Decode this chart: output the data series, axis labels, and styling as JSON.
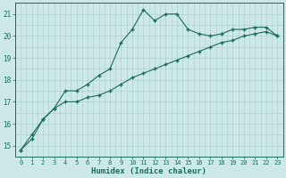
{
  "xlabel": "Humidex (Indice chaleur)",
  "ylabel": "",
  "background_color": "#cde8e8",
  "grid_color": "#b0d0d0",
  "line_color": "#1a6b5a",
  "xlim": [
    -0.5,
    23.5
  ],
  "ylim": [
    14.5,
    21.5
  ],
  "yticks": [
    15,
    16,
    17,
    18,
    19,
    20,
    21
  ],
  "xticks": [
    0,
    1,
    2,
    3,
    4,
    5,
    6,
    7,
    8,
    9,
    10,
    11,
    12,
    13,
    14,
    15,
    16,
    17,
    18,
    19,
    20,
    21,
    22,
    23
  ],
  "curve1_x": [
    0,
    1,
    2,
    3,
    4,
    5,
    6,
    7,
    8,
    9,
    10,
    11,
    12,
    13,
    14,
    15,
    16,
    17,
    18,
    19,
    20,
    21,
    22,
    23
  ],
  "curve1_y": [
    14.8,
    15.3,
    16.2,
    16.7,
    17.5,
    17.5,
    17.8,
    18.2,
    18.5,
    19.7,
    20.3,
    21.2,
    20.7,
    21.0,
    21.0,
    20.3,
    20.1,
    20.0,
    20.1,
    20.3,
    20.3,
    20.4,
    20.4,
    20.0
  ],
  "curve2_x": [
    0,
    1,
    2,
    3,
    4,
    5,
    6,
    7,
    8,
    9,
    10,
    11,
    12,
    13,
    14,
    15,
    16,
    17,
    18,
    19,
    20,
    21,
    22,
    23
  ],
  "curve2_y": [
    14.8,
    15.5,
    16.2,
    16.7,
    17.0,
    17.0,
    17.2,
    17.3,
    17.5,
    17.8,
    18.1,
    18.3,
    18.5,
    18.7,
    18.9,
    19.1,
    19.3,
    19.5,
    19.7,
    19.8,
    20.0,
    20.1,
    20.2,
    20.0
  ]
}
